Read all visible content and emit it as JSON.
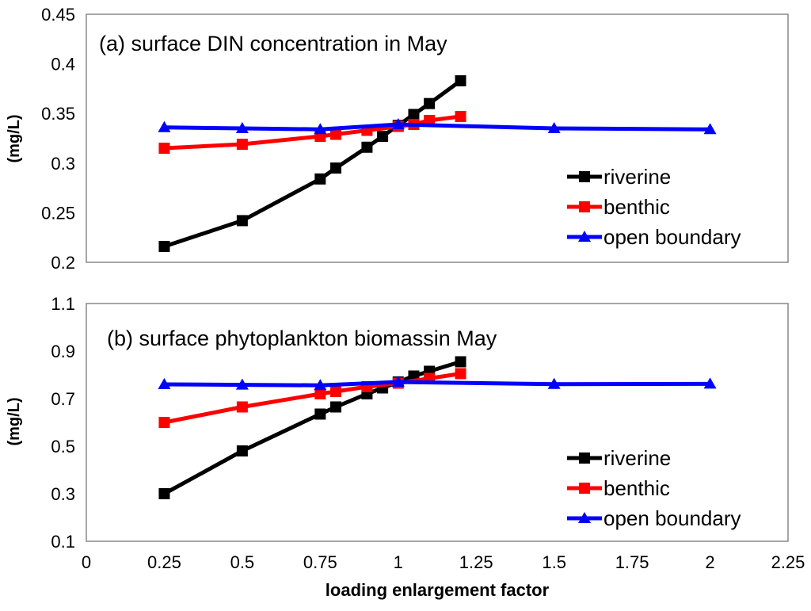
{
  "colors": {
    "riverine": "#000000",
    "benthic": "#ff0000",
    "open_boundary": "#0000ff"
  },
  "chart_data": [
    {
      "type": "line",
      "title": "(a) surface DIN concentration in May",
      "ylabel": "(mg/L)",
      "xlabel": "",
      "xlim": [
        0,
        2.25
      ],
      "ylim": [
        0.2,
        0.45
      ],
      "x_ticks": [
        "0",
        "0.25",
        "0.5",
        "0.75",
        "1",
        "1.25",
        "1.5",
        "1.75",
        "2",
        "2.25"
      ],
      "y_ticks": [
        "0.2",
        "0.25",
        "0.3",
        "0.35",
        "0.4",
        "0.45"
      ],
      "legend": [
        "riverine",
        "benthic",
        "open boundary"
      ],
      "series": [
        {
          "name": "riverine",
          "marker": "square",
          "x": [
            0.25,
            0.5,
            0.75,
            0.8,
            0.9,
            0.95,
            1.0,
            1.05,
            1.1,
            1.2
          ],
          "y": [
            0.216,
            0.242,
            0.284,
            0.295,
            0.316,
            0.327,
            0.338,
            0.349,
            0.36,
            0.383
          ]
        },
        {
          "name": "benthic",
          "marker": "square",
          "x": [
            0.25,
            0.5,
            0.75,
            0.8,
            0.9,
            1.0,
            1.05,
            1.1,
            1.2
          ],
          "y": [
            0.315,
            0.319,
            0.327,
            0.329,
            0.333,
            0.337,
            0.339,
            0.343,
            0.347
          ]
        },
        {
          "name": "open boundary",
          "marker": "triangle",
          "x": [
            0.25,
            0.5,
            0.75,
            1.0,
            1.5,
            2.0
          ],
          "y": [
            0.336,
            0.335,
            0.334,
            0.339,
            0.335,
            0.334
          ]
        }
      ]
    },
    {
      "type": "line",
      "title": "(b) surface phytoplankton biomassin May",
      "ylabel": "(mg/L)",
      "xlabel": "loading enlargement factor",
      "xlim": [
        0,
        2.25
      ],
      "ylim": [
        0.1,
        1.1
      ],
      "x_ticks": [
        "0",
        "0.25",
        "0.5",
        "0.75",
        "1",
        "1.25",
        "1.5",
        "1.75",
        "2",
        "2.25"
      ],
      "y_ticks": [
        "0.1",
        "0.3",
        "0.5",
        "0.7",
        "0.9",
        "1.1"
      ],
      "legend": [
        "riverine",
        "benthic",
        "open boundary"
      ],
      "series": [
        {
          "name": "riverine",
          "marker": "square",
          "x": [
            0.25,
            0.5,
            0.75,
            0.8,
            0.9,
            0.95,
            1.0,
            1.05,
            1.1,
            1.2
          ],
          "y": [
            0.3,
            0.48,
            0.635,
            0.665,
            0.72,
            0.745,
            0.77,
            0.795,
            0.815,
            0.855
          ]
        },
        {
          "name": "benthic",
          "marker": "square",
          "x": [
            0.25,
            0.5,
            0.75,
            0.8,
            0.9,
            1.0,
            1.1,
            1.2
          ],
          "y": [
            0.6,
            0.665,
            0.72,
            0.73,
            0.75,
            0.765,
            0.785,
            0.805
          ]
        },
        {
          "name": "open boundary",
          "marker": "triangle",
          "x": [
            0.25,
            0.5,
            0.75,
            1.0,
            1.5,
            2.0
          ],
          "y": [
            0.76,
            0.758,
            0.756,
            0.77,
            0.761,
            0.762
          ]
        }
      ]
    }
  ]
}
